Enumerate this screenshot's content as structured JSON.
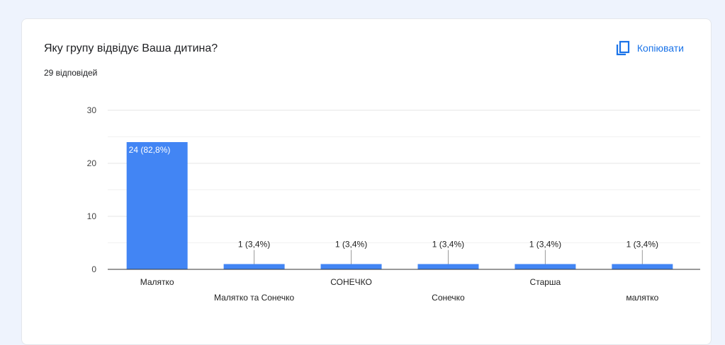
{
  "question": "Яку групу відвідує Ваша дитина?",
  "response_count": "29 відповідей",
  "copy_label": "Копіювати",
  "colors": {
    "accent": "#1a73e8",
    "bar": "#4285f4"
  },
  "icons": {
    "copy": "copy-icon"
  },
  "chart_data": {
    "type": "bar",
    "categories": [
      "Малятко",
      "Малятко та Сонечко",
      "СОНЕЧКО",
      "Сонечко",
      "Старша",
      "малятко"
    ],
    "values": [
      24,
      1,
      1,
      1,
      1,
      1
    ],
    "data_labels": [
      "24 (82,8%)",
      "1 (3,4%)",
      "1 (3,4%)",
      "1 (3,4%)",
      "1 (3,4%)",
      "1 (3,4%)"
    ],
    "y_ticks": [
      0,
      10,
      20,
      30
    ],
    "ylim": [
      0,
      30
    ],
    "title": "",
    "xlabel": "",
    "ylabel": "",
    "grid": true,
    "legend": "none"
  }
}
